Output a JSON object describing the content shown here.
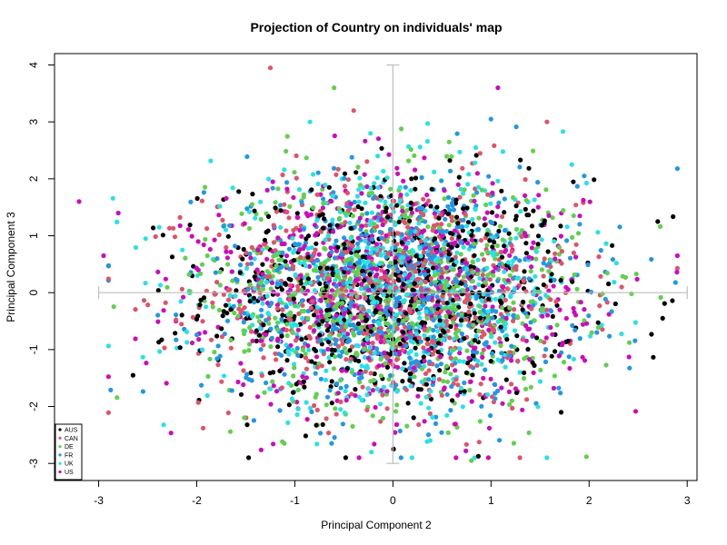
{
  "chart_data": {
    "type": "scatter",
    "title": "Projection of Country on individuals' map",
    "xlabel": "Principal Component 2",
    "ylabel": "Principal Component 3",
    "xlim": [
      -3.45,
      3.1
    ],
    "ylim": [
      -3.3,
      4.2
    ],
    "xticks": [
      -3,
      -2,
      -1,
      0,
      1,
      2,
      3
    ],
    "yticks": [
      -3,
      -2,
      -1,
      0,
      1,
      2,
      3,
      4
    ],
    "grid": false,
    "legend_position": "bottom-left",
    "point_count_per_series": 650,
    "spread_x": 0.95,
    "spread_y": 1.0,
    "series": [
      {
        "name": "AUS",
        "color": "#000000"
      },
      {
        "name": "CAN",
        "color": "#DF536B"
      },
      {
        "name": "DE",
        "color": "#61D04F"
      },
      {
        "name": "FR",
        "color": "#2297E6"
      },
      {
        "name": "UK",
        "color": "#28E2E5"
      },
      {
        "name": "US",
        "color": "#CD0BBC"
      }
    ],
    "reference_lines": {
      "horizontal": {
        "y": 0,
        "x_from": -3.0,
        "x_to": 3.0
      },
      "vertical": {
        "x": 0,
        "y_from": -3.0,
        "y_to": 4.0
      },
      "color": "#BEBEBE"
    },
    "outliers": [
      {
        "x": -1.25,
        "y": 3.95,
        "series": "CAN"
      },
      {
        "x": -0.6,
        "y": 3.6,
        "series": "DE"
      },
      {
        "x": 1.07,
        "y": 3.6,
        "series": "US"
      },
      {
        "x": -3.2,
        "y": 1.6,
        "series": "US"
      },
      {
        "x": -2.95,
        "y": 0.65,
        "series": "US"
      },
      {
        "x": 2.9,
        "y": 0.65,
        "series": "US"
      },
      {
        "x": 2.7,
        "y": 1.25,
        "series": "AUS"
      },
      {
        "x": 2.75,
        "y": -0.45,
        "series": "AUS"
      },
      {
        "x": 0.8,
        "y": -2.95,
        "series": "DE"
      },
      {
        "x": 1.0,
        "y": 3.05,
        "series": "FR"
      },
      {
        "x": -0.4,
        "y": 3.2,
        "series": "CAN"
      },
      {
        "x": -2.8,
        "y": 1.4,
        "series": "US"
      },
      {
        "x": -2.65,
        "y": -1.45,
        "series": "AUS"
      },
      {
        "x": 1.95,
        "y": 2.05,
        "series": "FR"
      }
    ]
  }
}
